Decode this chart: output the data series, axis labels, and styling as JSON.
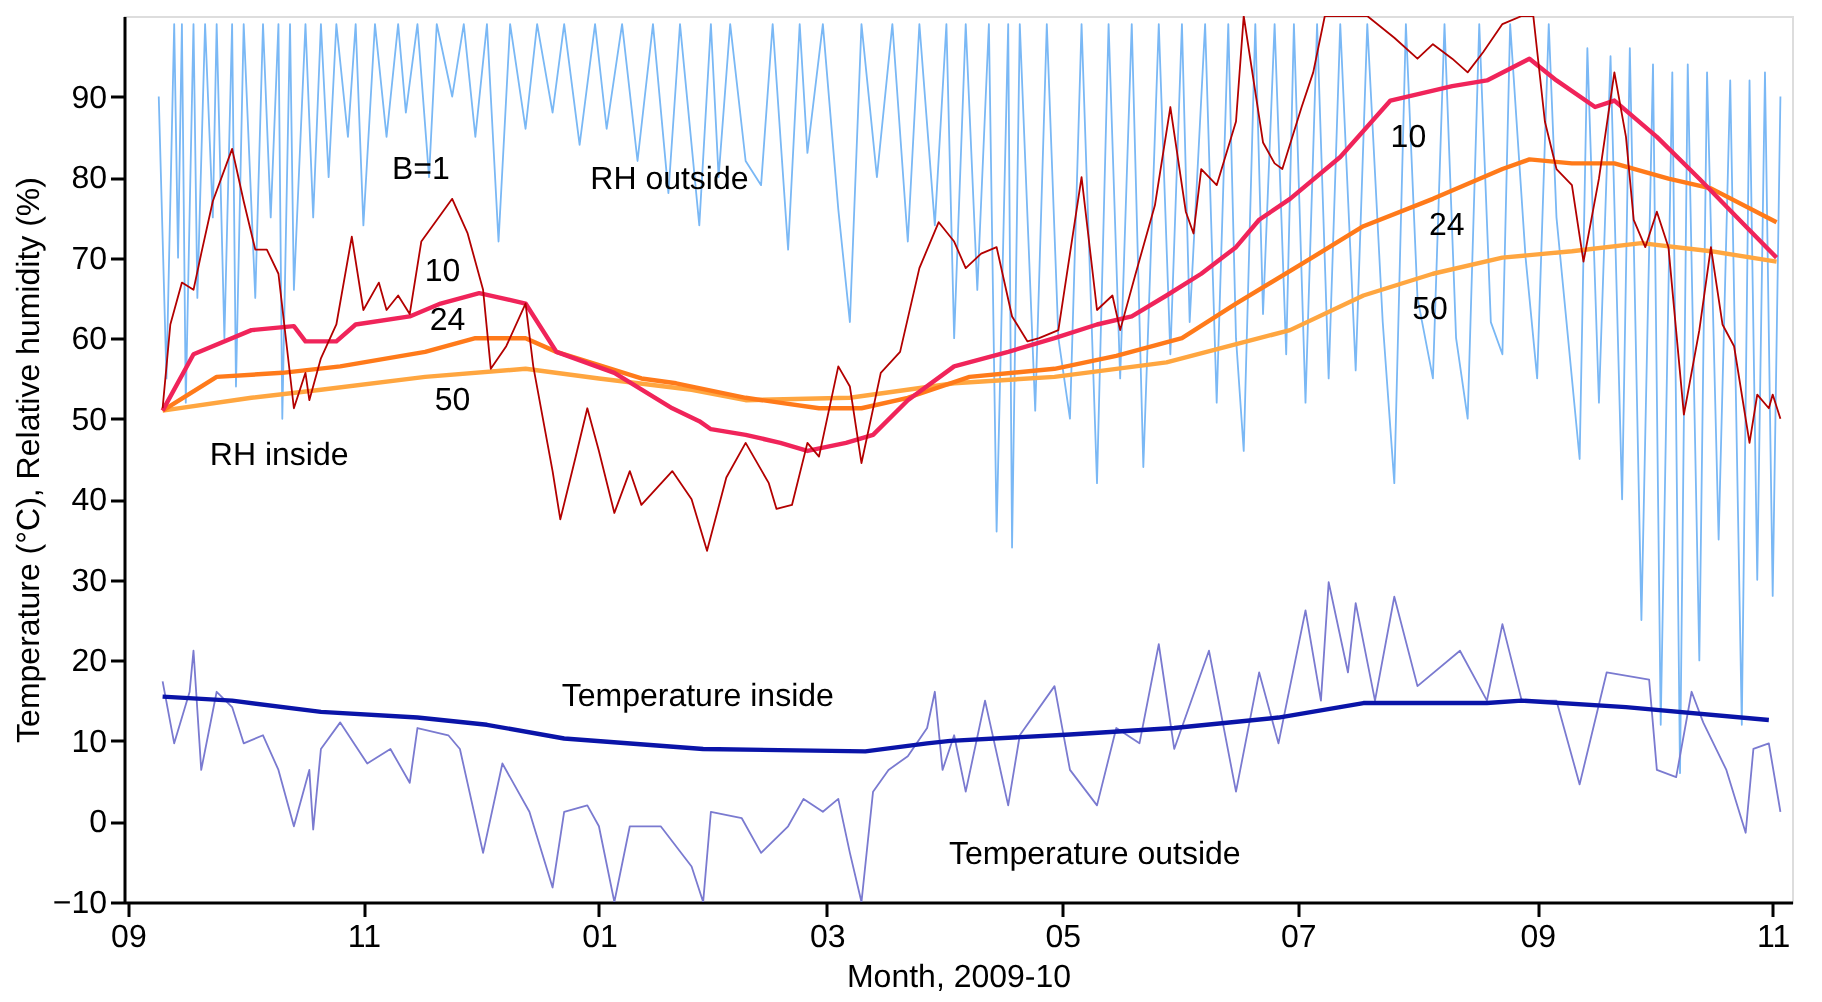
{
  "chart_data": {
    "type": "line",
    "xlabel": "Month, 2009-10",
    "ylabel": "Temperature (°C), Relative humidity (%)",
    "xlim": [
      "2009-08-31",
      "2010-11-06"
    ],
    "ylim": [
      -10,
      100
    ],
    "xticks": [
      {
        "value": "2009-09-01",
        "label": "09"
      },
      {
        "value": "2009-11-01",
        "label": "11"
      },
      {
        "value": "2010-01-01",
        "label": "01"
      },
      {
        "value": "2010-03-01",
        "label": "03"
      },
      {
        "value": "2010-05-01",
        "label": "05"
      },
      {
        "value": "2010-07-01",
        "label": "07"
      },
      {
        "value": "2010-09-01",
        "label": "09"
      },
      {
        "value": "2010-11-01",
        "label": "11"
      }
    ],
    "yticks": [
      -10,
      0,
      10,
      20,
      30,
      40,
      50,
      60,
      70,
      80,
      90
    ],
    "grid": false,
    "marker": "none",
    "line_style": "solid",
    "series": [
      {
        "color": "#7ab8f5",
        "x": [
          "2009-09-09",
          "2009-09-11",
          "2009-09-13",
          "2009-09-14",
          "2009-09-15",
          "2009-09-16",
          "2009-09-18",
          "2009-09-19",
          "2009-09-21",
          "2009-09-23",
          "2009-09-24",
          "2009-09-26",
          "2009-09-28",
          "2009-09-29",
          "2009-10-01",
          "2009-10-04",
          "2009-10-06",
          "2009-10-08",
          "2009-10-10",
          "2009-10-11",
          "2009-10-13",
          "2009-10-14",
          "2009-10-17",
          "2009-10-19",
          "2009-10-21",
          "2009-10-23",
          "2009-10-25",
          "2009-10-28",
          "2009-10-30",
          "2009-11-01",
          "2009-11-04",
          "2009-11-07",
          "2009-11-10",
          "2009-11-12",
          "2009-11-15",
          "2009-11-18",
          "2009-11-20",
          "2009-11-24",
          "2009-11-27",
          "2009-11-30",
          "2009-12-03",
          "2009-12-06",
          "2009-12-09",
          "2009-12-13",
          "2009-12-16",
          "2009-12-20",
          "2009-12-23",
          "2009-12-27",
          "2009-12-31",
          "2010-01-03",
          "2010-01-07",
          "2010-01-11",
          "2010-01-15",
          "2010-01-19",
          "2010-01-22",
          "2010-01-27",
          "2010-01-30",
          "2010-02-01",
          "2010-02-04",
          "2010-02-08",
          "2010-02-12",
          "2010-02-15",
          "2010-02-19",
          "2010-02-22",
          "2010-02-24",
          "2010-02-28",
          "2010-03-04",
          "2010-03-07",
          "2010-03-10",
          "2010-03-14",
          "2010-03-18",
          "2010-03-22",
          "2010-03-25",
          "2010-03-29",
          "2010-04-01",
          "2010-04-03",
          "2010-04-06",
          "2010-04-09",
          "2010-04-12",
          "2010-04-14",
          "2010-04-17",
          "2010-04-18",
          "2010-04-20",
          "2010-04-24",
          "2010-04-27",
          "2010-04-30",
          "2010-05-03",
          "2010-05-06",
          "2010-05-10",
          "2010-05-13",
          "2010-05-16",
          "2010-05-19",
          "2010-05-22",
          "2010-05-26",
          "2010-05-29",
          "2010-06-01",
          "2010-06-03",
          "2010-06-07",
          "2010-06-10",
          "2010-06-13",
          "2010-06-15",
          "2010-06-17",
          "2010-06-20",
          "2010-06-22",
          "2010-06-25",
          "2010-06-28",
          "2010-06-30",
          "2010-07-03",
          "2010-07-06",
          "2010-07-09",
          "2010-07-12",
          "2010-07-16",
          "2010-07-19",
          "2010-07-23",
          "2010-07-26",
          "2010-07-29",
          "2010-08-01",
          "2010-08-05",
          "2010-08-08",
          "2010-08-11",
          "2010-08-14",
          "2010-08-17",
          "2010-08-20",
          "2010-08-23",
          "2010-08-25",
          "2010-08-29",
          "2010-09-01",
          "2010-09-04",
          "2010-09-06",
          "2010-09-09",
          "2010-09-12",
          "2010-09-14",
          "2010-09-17",
          "2010-09-20",
          "2010-09-23",
          "2010-09-25",
          "2010-09-28",
          "2010-10-01",
          "2010-10-03",
          "2010-10-06",
          "2010-10-08",
          "2010-10-10",
          "2010-10-13",
          "2010-10-15",
          "2010-10-18",
          "2010-10-21",
          "2010-10-24",
          "2010-10-26",
          "2010-10-28",
          "2010-10-30",
          "2010-11-01",
          "2010-11-03"
        ],
        "values": [
          90,
          55,
          99,
          70,
          99,
          52,
          99,
          65,
          99,
          75,
          99,
          60,
          99,
          54,
          99,
          65,
          99,
          75,
          99,
          50,
          99,
          66,
          99,
          75,
          99,
          80,
          99,
          85,
          99,
          74,
          99,
          85,
          99,
          88,
          99,
          80,
          99,
          90,
          99,
          85,
          99,
          72,
          99,
          86,
          99,
          88,
          99,
          84,
          99,
          86,
          99,
          82,
          99,
          78,
          99,
          74,
          99,
          80,
          99,
          82,
          79,
          99,
          71,
          99,
          83,
          99,
          76,
          62,
          99,
          80,
          99,
          72,
          99,
          74,
          99,
          60,
          99,
          66,
          99,
          36,
          99,
          34,
          99,
          51,
          99,
          60,
          50,
          99,
          42,
          99,
          55,
          99,
          44,
          99,
          58,
          99,
          62,
          99,
          52,
          99,
          60,
          46,
          99,
          63,
          99,
          58,
          99,
          52,
          99,
          55,
          99,
          56,
          99,
          62,
          42,
          99,
          65,
          55,
          99,
          60,
          50,
          99,
          62,
          58,
          99,
          70,
          55,
          99,
          75,
          60,
          45,
          96,
          52,
          95,
          40,
          96,
          25,
          94,
          12,
          93,
          6,
          94,
          20,
          93,
          35,
          92,
          12,
          92,
          30,
          93,
          28,
          90
        ]
      },
      {
        "color": "#7a7ad0",
        "x": [
          "2009-09-10",
          "2009-09-13",
          "2009-09-17",
          "2009-09-18",
          "2009-09-20",
          "2009-09-24",
          "2009-09-28",
          "2009-10-01",
          "2009-10-06",
          "2009-10-10",
          "2009-10-14",
          "2009-10-18",
          "2009-10-19",
          "2009-10-21",
          "2009-10-26",
          "2009-11-02",
          "2009-11-08",
          "2009-11-13",
          "2009-11-15",
          "2009-11-23",
          "2009-11-26",
          "2009-12-02",
          "2009-12-07",
          "2009-12-14",
          "2009-12-20",
          "2009-12-23",
          "2009-12-29",
          "2010-01-01",
          "2010-01-05",
          "2010-01-09",
          "2010-01-17",
          "2010-01-25",
          "2010-01-28",
          "2010-01-30",
          "2010-02-07",
          "2010-02-12",
          "2010-02-19",
          "2010-02-23",
          "2010-02-28",
          "2010-03-04",
          "2010-03-07",
          "2010-03-10",
          "2010-03-13",
          "2010-03-17",
          "2010-03-22",
          "2010-03-27",
          "2010-03-29",
          "2010-03-31",
          "2010-04-03",
          "2010-04-06",
          "2010-04-11",
          "2010-04-17",
          "2010-04-20",
          "2010-04-29",
          "2010-05-03",
          "2010-05-10",
          "2010-05-15",
          "2010-05-21",
          "2010-05-26",
          "2010-05-30",
          "2010-06-08",
          "2010-06-15",
          "2010-06-21",
          "2010-06-26",
          "2010-07-03",
          "2010-07-07",
          "2010-07-09",
          "2010-07-14",
          "2010-07-16",
          "2010-07-21",
          "2010-07-26",
          "2010-08-01",
          "2010-08-12",
          "2010-08-19",
          "2010-08-23",
          "2010-08-28",
          "2010-09-06",
          "2010-09-12",
          "2010-09-19",
          "2010-09-30",
          "2010-10-02",
          "2010-10-07",
          "2010-10-11",
          "2010-10-14",
          "2010-10-20",
          "2010-10-25",
          "2010-10-27",
          "2010-10-31",
          "2010-11-03"
        ],
        "values": [
          17.4,
          9.7,
          16.1,
          21.2,
          6.4,
          16.1,
          14.2,
          9.7,
          10.7,
          6.4,
          -0.6,
          6.4,
          -1,
          9,
          12.3,
          7.2,
          9,
          4.8,
          11.6,
          10.7,
          9,
          -3.9,
          7.2,
          1.2,
          -8.2,
          1.2,
          2,
          -0.6,
          -10,
          -0.6,
          -0.6,
          -5.6,
          -10,
          1.2,
          0.4,
          -3.9,
          -0.6,
          2.8,
          1.2,
          2.8,
          -3.9,
          -10,
          3.7,
          6.4,
          8.1,
          11.6,
          16.1,
          6.4,
          10.7,
          3.7,
          15,
          2,
          10.7,
          16.8,
          6.4,
          2,
          11.6,
          9.7,
          22,
          9,
          21.2,
          3.7,
          18.5,
          9.7,
          26.2,
          15,
          29.7,
          18.5,
          27.1,
          15,
          27.9,
          16.8,
          21.2,
          15,
          24.5,
          15,
          15,
          4.6,
          18.5,
          17.6,
          6.4,
          5.5,
          16.1,
          12.3,
          6.4,
          -1.4,
          9,
          9.7,
          1.2
        ]
      },
      {
        "color": "#ffa640",
        "x": [
          "2009-09-10",
          "2009-10-03",
          "2009-10-21",
          "2009-11-17",
          "2009-12-13",
          "2010-01-01",
          "2010-01-25",
          "2010-02-08",
          "2010-03-07",
          "2010-04-03",
          "2010-04-29",
          "2010-05-28",
          "2010-06-21",
          "2010-06-29",
          "2010-07-18",
          "2010-08-05",
          "2010-08-23",
          "2010-09-10",
          "2010-09-28",
          "2010-10-16",
          "2010-11-02"
        ],
        "values": [
          51,
          52.6,
          53.6,
          55.2,
          56.2,
          55,
          53.6,
          52.3,
          52.6,
          54.4,
          55.2,
          57,
          60,
          61,
          65.3,
          68,
          70,
          70.8,
          71.8,
          70.8,
          69.5
        ]
      },
      {
        "color": "#ff7a1a",
        "x": [
          "2009-09-10",
          "2009-09-24",
          "2009-10-11",
          "2009-10-26",
          "2009-11-17",
          "2009-11-30",
          "2009-12-13",
          "2009-12-21",
          "2010-01-12",
          "2010-01-21",
          "2010-02-08",
          "2010-02-27",
          "2010-03-10",
          "2010-03-22",
          "2010-04-07",
          "2010-04-29",
          "2010-05-15",
          "2010-06-01",
          "2010-06-15",
          "2010-07-03",
          "2010-07-18",
          "2010-08-05",
          "2010-08-23",
          "2010-08-30",
          "2010-09-10",
          "2010-09-21",
          "2010-10-05",
          "2010-10-16",
          "2010-11-02"
        ],
        "values": [
          51,
          55.2,
          55.7,
          56.5,
          58.3,
          60,
          60,
          58.3,
          55,
          54.4,
          52.6,
          51.3,
          51.3,
          52.6,
          55.2,
          56.2,
          57.8,
          60,
          64.3,
          69.5,
          73.9,
          77.3,
          81,
          82.2,
          81.7,
          81.7,
          79.8,
          78.6,
          74.4
        ]
      },
      {
        "color": "#f0245a",
        "x": [
          "2009-09-10",
          "2009-09-18",
          "2009-10-03",
          "2009-10-14",
          "2009-10-17",
          "2009-10-25",
          "2009-10-30",
          "2009-11-13",
          "2009-11-21",
          "2009-12-01",
          "2009-12-13",
          "2009-12-21",
          "2010-01-05",
          "2010-01-20",
          "2010-01-27",
          "2010-01-30",
          "2010-02-08",
          "2010-02-17",
          "2010-02-24",
          "2010-03-06",
          "2010-03-13",
          "2010-03-22",
          "2010-04-03",
          "2010-04-17",
          "2010-04-29",
          "2010-05-10",
          "2010-05-19",
          "2010-05-28",
          "2010-06-06",
          "2010-06-15",
          "2010-06-21",
          "2010-06-29",
          "2010-07-12",
          "2010-07-25",
          "2010-08-10",
          "2010-08-19",
          "2010-08-30",
          "2010-09-06",
          "2010-09-16",
          "2010-09-21",
          "2010-10-02",
          "2010-10-13",
          "2010-10-25",
          "2010-11-02"
        ],
        "values": [
          51,
          58,
          61,
          61.5,
          59.6,
          59.6,
          61.7,
          62.7,
          64.3,
          65.6,
          64.3,
          58.3,
          55.7,
          51.3,
          49.7,
          48.7,
          48,
          47,
          46,
          47,
          48,
          52.3,
          56.5,
          58.3,
          60,
          61.7,
          62.7,
          65.3,
          68,
          71.3,
          74.7,
          77.3,
          82.5,
          89.5,
          91.3,
          92,
          94.7,
          92,
          88.7,
          89.5,
          85,
          79.8,
          73.9,
          70
        ]
      },
      {
        "color": "#b30000",
        "x": [
          "2009-09-10",
          "2009-09-12",
          "2009-09-15",
          "2009-09-18",
          "2009-09-20",
          "2009-09-23",
          "2009-09-28",
          "2009-10-01",
          "2009-10-04",
          "2009-10-07",
          "2009-10-10",
          "2009-10-14",
          "2009-10-17",
          "2009-10-18",
          "2009-10-21",
          "2009-10-25",
          "2009-10-29",
          "2009-11-01",
          "2009-11-05",
          "2009-11-07",
          "2009-11-10",
          "2009-11-13",
          "2009-11-16",
          "2009-11-24",
          "2009-11-28",
          "2009-12-02",
          "2009-12-04",
          "2009-12-08",
          "2009-12-13",
          "2009-12-15",
          "2009-12-20",
          "2009-12-22",
          "2009-12-26",
          "2009-12-29",
          "2010-01-01",
          "2010-01-05",
          "2010-01-09",
          "2010-01-12",
          "2010-01-20",
          "2010-01-25",
          "2010-01-29",
          "2010-02-03",
          "2010-02-08",
          "2010-02-14",
          "2010-02-16",
          "2010-02-20",
          "2010-02-24",
          "2010-02-27",
          "2010-03-04",
          "2010-03-07",
          "2010-03-10",
          "2010-03-15",
          "2010-03-20",
          "2010-03-25",
          "2010-03-30",
          "2010-04-03",
          "2010-04-06",
          "2010-04-10",
          "2010-04-14",
          "2010-04-18",
          "2010-04-22",
          "2010-04-25",
          "2010-04-30",
          "2010-05-06",
          "2010-05-10",
          "2010-05-14",
          "2010-05-16",
          "2010-05-20",
          "2010-05-25",
          "2010-05-29",
          "2010-06-02",
          "2010-06-04",
          "2010-06-06",
          "2010-06-10",
          "2010-06-15",
          "2010-06-17",
          "2010-06-22",
          "2010-06-25",
          "2010-06-27",
          "2010-07-02",
          "2010-07-05",
          "2010-07-08",
          "2010-07-14",
          "2010-07-19",
          "2010-07-26",
          "2010-08-01",
          "2010-08-05",
          "2010-08-10",
          "2010-08-14",
          "2010-08-18",
          "2010-08-23",
          "2010-08-28",
          "2010-08-31",
          "2010-09-03",
          "2010-09-06",
          "2010-09-10",
          "2010-09-13",
          "2010-09-17",
          "2010-09-21",
          "2010-09-24",
          "2010-09-26",
          "2010-09-29",
          "2010-10-02",
          "2010-10-05",
          "2010-10-09",
          "2010-10-13",
          "2010-10-16",
          "2010-10-19",
          "2010-10-22",
          "2010-10-26",
          "2010-10-28",
          "2010-10-31",
          "2010-11-01",
          "2010-11-03"
        ],
        "values": [
          51.3,
          61.7,
          66.9,
          66,
          70.5,
          77,
          83.5,
          77,
          71,
          71,
          68,
          51.3,
          55.7,
          52.3,
          57.5,
          61.7,
          72.6,
          63.5,
          66.9,
          63.5,
          65.3,
          63,
          72,
          77.3,
          73,
          66,
          56.2,
          59,
          64.3,
          56.5,
          43.5,
          37.5,
          45.3,
          51.3,
          46,
          38.3,
          43.5,
          39.3,
          43.5,
          40,
          33.6,
          42.7,
          47,
          42,
          38.8,
          39.3,
          47,
          45.3,
          56.5,
          54,
          44.5,
          55.7,
          58.3,
          68.7,
          74.4,
          72,
          68.7,
          70.5,
          71.3,
          62.7,
          59.6,
          60,
          61,
          80,
          63.5,
          65.3,
          61,
          68,
          76.5,
          88.7,
          75.7,
          73,
          81,
          79,
          86.9,
          100,
          84.3,
          81.7,
          81,
          88.7,
          93,
          100,
          100,
          100,
          97.3,
          94.7,
          96.5,
          94.7,
          93,
          95.5,
          99,
          100,
          100,
          86.9,
          81,
          79,
          69.5,
          79.8,
          93,
          85,
          74.7,
          71.3,
          75.7,
          71.3,
          50.5,
          61,
          71.3,
          61.7,
          59,
          47,
          53,
          51.3,
          53,
          50
        ]
      },
      {
        "color": "#0a14a8",
        "x": [
          "2009-09-10",
          "2009-09-28",
          "2009-10-21",
          "2009-11-15",
          "2009-12-03",
          "2009-12-23",
          "2010-01-28",
          "2010-03-11",
          "2010-03-27",
          "2010-04-02",
          "2010-05-03",
          "2010-05-30",
          "2010-06-26",
          "2010-07-18",
          "2010-08-19",
          "2010-08-28",
          "2010-09-24",
          "2010-10-31"
        ],
        "values": [
          15.5,
          15,
          13.6,
          12.9,
          12,
          10.3,
          9,
          8.7,
          9.7,
          10,
          10.8,
          11.6,
          12.9,
          14.7,
          14.7,
          15,
          14.2,
          12.6
        ]
      }
    ],
    "annotations": [
      "B=1",
      "10",
      "24",
      "50",
      "RH inside",
      "RH outside",
      "10",
      "24",
      "50",
      "Temperature inside",
      "Temperature outside"
    ]
  }
}
